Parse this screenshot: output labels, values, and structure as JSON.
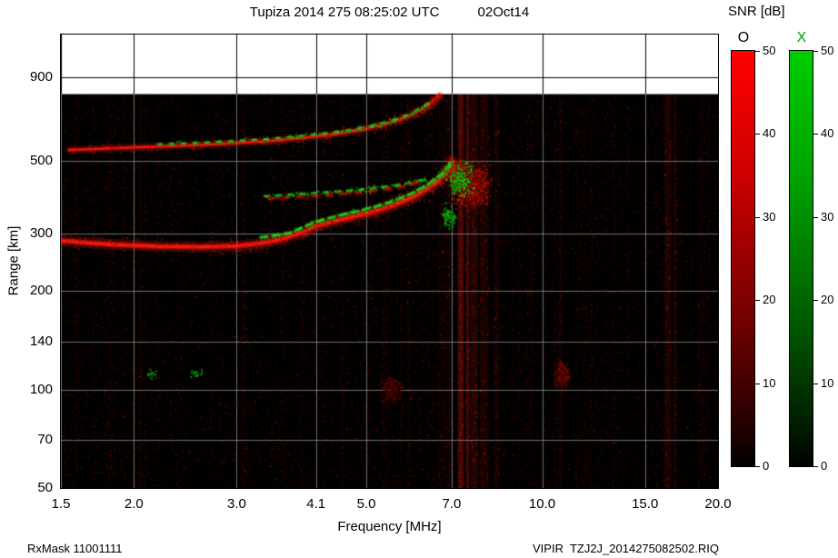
{
  "header": {
    "title": "Tupiza 2014 275 08:25:02 UTC",
    "date": "02Oct14"
  },
  "colorbar_panel": {
    "title": "SNR [dB]"
  },
  "footer": {
    "left": "RxMask 11001111",
    "right": "VIPIR  TZJ2J_2014275082502.RIQ"
  },
  "chart_data": {
    "type": "heatmap",
    "title": "Tupiza 2014 275 08:25:02 UTC",
    "date_label": "02Oct14",
    "xlabel": "Frequency [MHz]",
    "ylabel": "Range [km]",
    "x_scale": "log",
    "y_scale": "log",
    "xlim": [
      1.5,
      20
    ],
    "ylim": [
      50,
      1217
    ],
    "x_ticks": [
      1.5,
      2.0,
      3.0,
      4.1,
      5.0,
      7.0,
      10.0,
      15.0,
      20.0
    ],
    "x_tick_labels": [
      "1.5",
      "2.0",
      "3.0",
      "4.1",
      "5.0",
      "7.0",
      "10.0",
      "15.0",
      "20.0"
    ],
    "y_ticks": [
      50,
      70,
      100,
      140,
      200,
      300,
      500,
      900
    ],
    "y_tick_labels": [
      "50",
      "70",
      "100",
      "140",
      "200",
      "300",
      "500",
      "900"
    ],
    "data_top_range_km": 800,
    "background_color": "#000000",
    "grid": true,
    "colorbars": [
      {
        "label": "O",
        "label_color": "#000000",
        "color": "#ff0000",
        "min": 0,
        "max": 50,
        "ticks": [
          50,
          40,
          30,
          20,
          10,
          0
        ]
      },
      {
        "label": "X",
        "label_color": "#00a000",
        "color": "#00cc00",
        "min": 0,
        "max": 50,
        "ticks": [
          50,
          40,
          30,
          20,
          10,
          0
        ]
      }
    ],
    "noise": {
      "seed": 1337,
      "count": 26000,
      "green_fraction": 0.035
    },
    "stripes": [
      {
        "f": 7.25,
        "w": 6,
        "a": 0.5
      },
      {
        "f": 7.45,
        "w": 4,
        "a": 0.42
      },
      {
        "f": 7.65,
        "w": 8,
        "a": 0.25
      },
      {
        "f": 7.95,
        "w": 10,
        "a": 0.15
      },
      {
        "f": 8.35,
        "w": 6,
        "a": 0.12
      },
      {
        "f": 6.8,
        "w": 14,
        "a": 0.07
      },
      {
        "f": 16.4,
        "w": 7,
        "a": 0.18
      },
      {
        "f": 16.9,
        "w": 4,
        "a": 0.12
      },
      {
        "f": 2.05,
        "w": 3,
        "a": 0.1
      },
      {
        "f": 3.1,
        "w": 3,
        "a": 0.07
      },
      {
        "f": 4.55,
        "w": 3,
        "a": 0.08
      },
      {
        "f": 5.9,
        "w": 4,
        "a": 0.07
      },
      {
        "f": 10.75,
        "w": 4,
        "a": 0.1
      },
      {
        "f": 12.1,
        "w": 3,
        "a": 0.06
      },
      {
        "f": 18.6,
        "w": 3,
        "a": 0.08
      }
    ],
    "traces": [
      {
        "name": "F-trace-O",
        "color": "red",
        "width": 5,
        "speckle": 700,
        "points": [
          [
            1.5,
            285
          ],
          [
            1.8,
            278
          ],
          [
            2.2,
            274
          ],
          [
            2.6,
            273
          ],
          [
            3.0,
            275
          ],
          [
            3.3,
            280
          ],
          [
            3.6,
            289
          ],
          [
            3.9,
            303
          ],
          [
            4.1,
            316
          ],
          [
            4.5,
            330
          ],
          [
            5.0,
            345
          ],
          [
            5.5,
            363
          ],
          [
            6.0,
            387
          ],
          [
            6.3,
            406
          ],
          [
            6.6,
            430
          ],
          [
            6.8,
            453
          ],
          [
            6.95,
            478
          ],
          [
            7.02,
            498
          ]
        ]
      },
      {
        "name": "F-trace-X",
        "color": "green",
        "width": 2.4,
        "dash": [
          7,
          6
        ],
        "speckle": 260,
        "points": [
          [
            3.3,
            292
          ],
          [
            3.7,
            301
          ],
          [
            4.1,
            326
          ],
          [
            4.5,
            341
          ],
          [
            5.0,
            356
          ],
          [
            5.5,
            374
          ],
          [
            6.0,
            399
          ],
          [
            6.4,
            426
          ],
          [
            6.7,
            453
          ],
          [
            6.9,
            479
          ],
          [
            7.0,
            500
          ]
        ]
      },
      {
        "name": "second-hop-O",
        "color": "red",
        "width": 3.5,
        "alpha": 0.85,
        "speckle": 500,
        "points": [
          [
            1.55,
            540
          ],
          [
            1.9,
            548
          ],
          [
            2.4,
            556
          ],
          [
            2.9,
            565
          ],
          [
            3.4,
            575
          ],
          [
            3.9,
            588
          ],
          [
            4.4,
            603
          ],
          [
            4.9,
            622
          ],
          [
            5.3,
            643
          ],
          [
            5.7,
            668
          ],
          [
            6.0,
            696
          ],
          [
            6.3,
            729
          ],
          [
            6.5,
            761
          ],
          [
            6.68,
            796
          ]
        ]
      },
      {
        "name": "second-hop-X",
        "color": "green",
        "width": 1.8,
        "alpha": 0.9,
        "dash": [
          4,
          9
        ],
        "speckle": 220,
        "points": [
          [
            2.2,
            562
          ],
          [
            2.8,
            572
          ],
          [
            3.4,
            584
          ],
          [
            4.0,
            600
          ],
          [
            4.6,
            618
          ],
          [
            5.1,
            640
          ],
          [
            5.5,
            662
          ],
          [
            5.9,
            692
          ],
          [
            6.2,
            726
          ],
          [
            6.45,
            762
          ]
        ]
      },
      {
        "name": "mid-echo-X",
        "color": "green",
        "width": 2,
        "alpha": 0.9,
        "dash": [
          5,
          8
        ],
        "speckle": 160,
        "points": [
          [
            3.35,
            390
          ],
          [
            3.7,
            394
          ],
          [
            4.0,
            398
          ],
          [
            4.4,
            402
          ],
          [
            4.8,
            407
          ],
          [
            5.2,
            413
          ],
          [
            5.6,
            421
          ],
          [
            6.0,
            430
          ],
          [
            6.3,
            440
          ]
        ]
      },
      {
        "name": "mid-echo-O",
        "color": "red",
        "width": 2.4,
        "alpha": 0.55,
        "dash": [
          6,
          10
        ],
        "speckle": 120,
        "points": [
          [
            3.4,
            383
          ],
          [
            3.8,
            388
          ],
          [
            4.3,
            393
          ],
          [
            4.8,
            399
          ],
          [
            5.3,
            407
          ],
          [
            5.8,
            419
          ],
          [
            6.15,
            431
          ]
        ]
      }
    ],
    "blobs": [
      {
        "name": "spread-echo-cloud",
        "color": "red",
        "f": 7.5,
        "km": 420,
        "df": 0.8,
        "dkm": 90,
        "count": 1400,
        "bright": 0.8
      },
      {
        "name": "spread-echo-core",
        "color": "red",
        "f": 7.15,
        "km": 460,
        "df": 0.3,
        "dkm": 55,
        "count": 600,
        "bright": 1.0
      },
      {
        "name": "spread-echo-green",
        "color": "green",
        "f": 7.2,
        "km": 440,
        "df": 0.5,
        "dkm": 75,
        "count": 220,
        "bright": 0.95
      },
      {
        "name": "green-scatter-pre-cloud",
        "color": "green",
        "f": 6.9,
        "km": 340,
        "df": 0.3,
        "dkm": 45,
        "count": 90,
        "bright": 0.85
      },
      {
        "name": "green-speckle-low-1",
        "color": "green",
        "f": 2.15,
        "km": 112,
        "df": 0.07,
        "dkm": 6,
        "count": 20,
        "bright": 0.7
      },
      {
        "name": "green-speckle-low-2",
        "color": "green",
        "f": 2.55,
        "km": 112,
        "df": 0.09,
        "dkm": 6,
        "count": 24,
        "bright": 0.7
      },
      {
        "name": "red-patch-low-1",
        "color": "red",
        "f": 5.5,
        "km": 100,
        "df": 0.3,
        "dkm": 13,
        "count": 240,
        "bright": 0.4
      },
      {
        "name": "red-patch-low-2",
        "color": "red",
        "f": 10.8,
        "km": 112,
        "df": 0.4,
        "dkm": 15,
        "count": 320,
        "bright": 0.55
      }
    ]
  }
}
